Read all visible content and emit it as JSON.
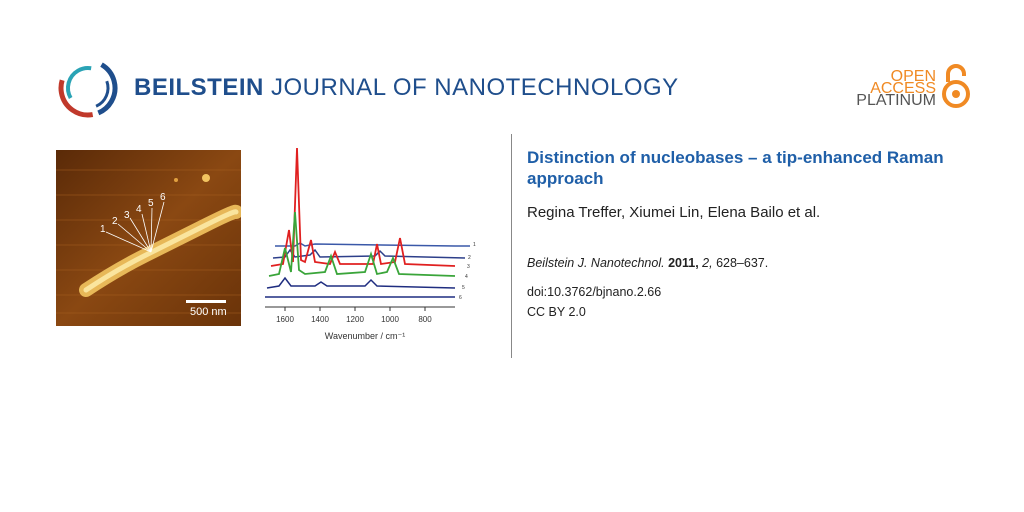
{
  "header": {
    "brand": "BEILSTEIN",
    "journal": "JOURNAL OF NANOTECHNOLOGY",
    "logo_icon": "beilstein-ring-logo",
    "colors": {
      "brand_blue": "#1f4e8c",
      "accent_red": "#c0392b",
      "accent_teal": "#2aa3b5"
    }
  },
  "open_access": {
    "line1": "OPEN",
    "line2": "ACCESS",
    "line3": "PLATINUM",
    "icon": "open-lock-icon",
    "color": "#f08a24"
  },
  "figure": {
    "afm_scale_label": "500 nm",
    "afm_point_labels": [
      "1",
      "2",
      "3",
      "4",
      "5",
      "6"
    ],
    "spectra_xlabel": "Wavenumber / cm⁻¹",
    "spectra_ticks": [
      "1600",
      "1400",
      "1200",
      "1000",
      "800"
    ],
    "spectra_series_labels": [
      "1",
      "2",
      "3",
      "4",
      "5",
      "6"
    ]
  },
  "article": {
    "title": "Distinction of nucleobases – a tip-enhanced Raman approach",
    "authors": "Regina Treffer, Xiumei Lin, Elena Bailo et al.",
    "journal_abbrev": "Beilstein J. Nanotechnol.",
    "year": "2011,",
    "volume": "2,",
    "pages": "628–637.",
    "doi": "doi:10.3762/bjnano.2.66",
    "license": "CC BY 2.0"
  }
}
